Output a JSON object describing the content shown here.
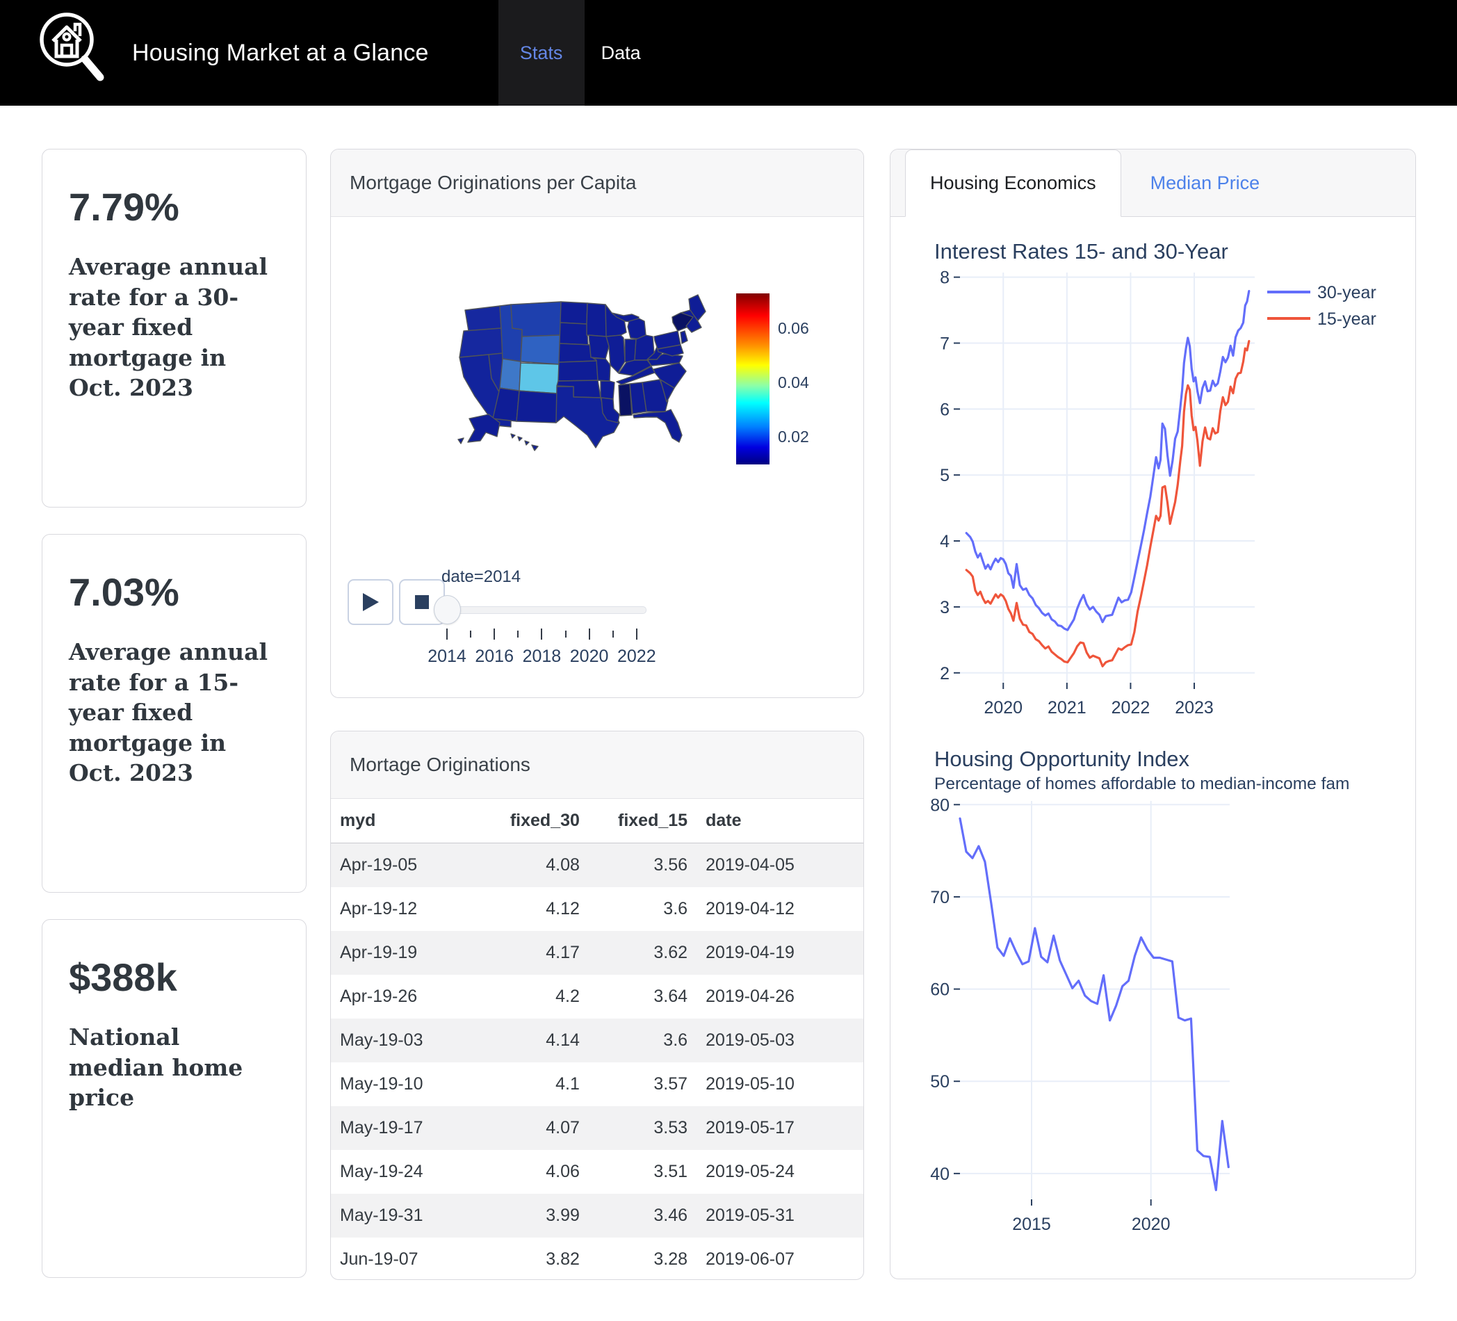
{
  "navbar": {
    "brand": "Housing Market at a Glance",
    "logo": "house-magnifier-icon",
    "tabs": [
      {
        "label": "Stats",
        "active": true
      },
      {
        "label": "Data",
        "active": false
      }
    ]
  },
  "stat_cards": [
    {
      "value": "7.79%",
      "description": "Average annual rate for a 30-year fixed mortgage in Oct. 2023"
    },
    {
      "value": "7.03%",
      "description": "Average annual rate for a 15-year fixed mortgage in Oct. 2023"
    },
    {
      "value": "$388k",
      "description": "National median home price"
    }
  ],
  "map_card": {
    "title": "Mortgage Originations per Capita",
    "player": {
      "play_icon": "play-icon",
      "stop_icon": "stop-icon"
    },
    "slider": {
      "label": "date=2014",
      "value": 2014,
      "tick_years": [
        2014,
        2015,
        2016,
        2017,
        2018,
        2019,
        2020,
        2021,
        2022
      ],
      "labeled_ticks": [
        "2014",
        "2016",
        "2018",
        "2020",
        "2022"
      ]
    }
  },
  "table_card": {
    "title": "Mortage Originations",
    "columns": [
      "myd",
      "fixed_30",
      "fixed_15",
      "date"
    ],
    "rows": [
      [
        "Apr-19-05",
        "4.08",
        "3.56",
        "2019-04-05"
      ],
      [
        "Apr-19-12",
        "4.12",
        "3.6",
        "2019-04-12"
      ],
      [
        "Apr-19-19",
        "4.17",
        "3.62",
        "2019-04-19"
      ],
      [
        "Apr-19-26",
        "4.2",
        "3.64",
        "2019-04-26"
      ],
      [
        "May-19-03",
        "4.14",
        "3.6",
        "2019-05-03"
      ],
      [
        "May-19-10",
        "4.1",
        "3.57",
        "2019-05-10"
      ],
      [
        "May-19-17",
        "4.07",
        "3.53",
        "2019-05-17"
      ],
      [
        "May-19-24",
        "4.06",
        "3.51",
        "2019-05-24"
      ],
      [
        "May-19-31",
        "3.99",
        "3.46",
        "2019-05-31"
      ],
      [
        "Jun-19-07",
        "3.82",
        "3.28",
        "2019-06-07"
      ]
    ]
  },
  "right_panel": {
    "tabs": [
      {
        "label": "Housing Economics",
        "active": true
      },
      {
        "label": "Median Price",
        "active": false
      }
    ]
  },
  "chart_data": [
    {
      "type": "choropleth",
      "title": "Mortgage Originations per Capita",
      "frame_label": "date=2014",
      "colorbar": {
        "ticks": [
          0.02,
          0.04,
          0.06
        ],
        "range": [
          0.0097,
          0.0728
        ],
        "colormap": "jet"
      },
      "base_color": "#0f1d96",
      "state_colors": {
        "CO": "#5ec6e8",
        "UT": "#3e78c8",
        "WY": "#2f62c2",
        "MT": "#1e40ae",
        "ID": "#1e40ae",
        "NY": "#0a1263",
        "MS": "#0a1263",
        "WA": "#16289f",
        "OR": "#16289f",
        "NV": "#16289f",
        "CA": "#12239c",
        "TX": "#11229b"
      }
    },
    {
      "type": "line",
      "title": "Interest Rates 15- and 30-Year",
      "x_range": [
        2019.32,
        2023.95
      ],
      "y_range": [
        1.85,
        8.07
      ],
      "x_ticks": [
        2020,
        2021,
        2022,
        2023
      ],
      "y_ticks": [
        2,
        3,
        4,
        5,
        6,
        7,
        8
      ],
      "grid": true,
      "legend_position": "right-outside",
      "x": [
        2019.42,
        2019.48,
        2019.52,
        2019.56,
        2019.6,
        2019.64,
        2019.68,
        2019.72,
        2019.76,
        2019.8,
        2019.84,
        2019.88,
        2019.92,
        2019.96,
        2020.0,
        2020.04,
        2020.08,
        2020.12,
        2020.16,
        2020.21,
        2020.26,
        2020.31,
        2020.36,
        2020.41,
        2020.46,
        2020.51,
        2020.56,
        2020.61,
        2020.66,
        2020.71,
        2020.76,
        2020.81,
        2020.86,
        2020.91,
        2020.96,
        2021.01,
        2021.06,
        2021.11,
        2021.16,
        2021.21,
        2021.26,
        2021.31,
        2021.36,
        2021.41,
        2021.46,
        2021.51,
        2021.56,
        2021.61,
        2021.66,
        2021.71,
        2021.76,
        2021.81,
        2021.86,
        2021.91,
        2021.96,
        2022.01,
        2022.06,
        2022.11,
        2022.16,
        2022.21,
        2022.26,
        2022.31,
        2022.36,
        2022.4,
        2022.44,
        2022.47,
        2022.5,
        2022.54,
        2022.58,
        2022.62,
        2022.66,
        2022.7,
        2022.74,
        2022.78,
        2022.81,
        2022.84,
        2022.87,
        2022.9,
        2022.93,
        2022.96,
        2022.99,
        2023.02,
        2023.05,
        2023.09,
        2023.13,
        2023.17,
        2023.21,
        2023.25,
        2023.29,
        2023.33,
        2023.37,
        2023.41,
        2023.45,
        2023.49,
        2023.53,
        2023.57,
        2023.61,
        2023.65,
        2023.69,
        2023.73,
        2023.77,
        2023.8,
        2023.83,
        2023.86
      ],
      "series": [
        {
          "name": "30-year",
          "color": "#636efa",
          "y": [
            4.12,
            4.06,
            3.99,
            3.84,
            3.75,
            3.81,
            3.69,
            3.58,
            3.64,
            3.57,
            3.66,
            3.73,
            3.68,
            3.74,
            3.72,
            3.65,
            3.51,
            3.47,
            3.29,
            3.65,
            3.33,
            3.26,
            3.28,
            3.18,
            3.13,
            3.03,
            2.98,
            2.91,
            2.87,
            2.9,
            2.81,
            2.78,
            2.72,
            2.71,
            2.67,
            2.65,
            2.73,
            2.81,
            2.97,
            3.09,
            3.18,
            3.04,
            2.96,
            3.0,
            2.93,
            2.88,
            2.77,
            2.86,
            2.87,
            2.88,
            3.01,
            3.14,
            3.07,
            3.1,
            3.11,
            3.22,
            3.45,
            3.69,
            3.92,
            4.16,
            4.42,
            4.67,
            5.0,
            5.27,
            5.1,
            5.23,
            5.78,
            5.7,
            5.3,
            4.99,
            5.22,
            5.55,
            5.66,
            6.02,
            6.29,
            6.7,
            6.92,
            7.08,
            6.95,
            6.61,
            6.42,
            6.48,
            6.27,
            6.09,
            6.32,
            6.42,
            6.27,
            6.28,
            6.43,
            6.35,
            6.39,
            6.57,
            6.79,
            6.71,
            6.78,
            6.96,
            6.81,
            7.09,
            7.19,
            7.23,
            7.31,
            7.57,
            7.63,
            7.79
          ]
        },
        {
          "name": "15-year",
          "color": "#ef553b",
          "y": [
            3.56,
            3.51,
            3.46,
            3.25,
            3.18,
            3.23,
            3.13,
            3.06,
            3.09,
            3.05,
            3.12,
            3.19,
            3.14,
            3.19,
            3.16,
            3.09,
            2.97,
            2.9,
            2.79,
            3.06,
            2.82,
            2.73,
            2.72,
            2.62,
            2.59,
            2.51,
            2.48,
            2.42,
            2.37,
            2.4,
            2.32,
            2.28,
            2.24,
            2.21,
            2.17,
            2.16,
            2.23,
            2.3,
            2.4,
            2.46,
            2.45,
            2.31,
            2.23,
            2.26,
            2.24,
            2.22,
            2.1,
            2.16,
            2.18,
            2.19,
            2.28,
            2.37,
            2.35,
            2.39,
            2.42,
            2.43,
            2.62,
            2.93,
            3.15,
            3.39,
            3.63,
            3.91,
            4.17,
            4.38,
            4.31,
            4.38,
            4.81,
            4.83,
            4.58,
            4.26,
            4.43,
            4.59,
            4.85,
            5.21,
            5.44,
            5.96,
            6.23,
            6.36,
            6.29,
            5.9,
            5.68,
            5.73,
            5.52,
            5.14,
            5.51,
            5.72,
            5.56,
            5.54,
            5.71,
            5.63,
            5.65,
            5.97,
            6.18,
            6.06,
            6.11,
            6.34,
            6.24,
            6.46,
            6.54,
            6.55,
            6.72,
            6.92,
            6.89,
            7.03
          ]
        }
      ]
    },
    {
      "type": "line",
      "title": "Housing Opportunity Index",
      "subtitle": "Percentage of homes affordable to median-income fam",
      "x_range": [
        2012.0,
        2023.3
      ],
      "y_range": [
        37.2,
        80.4
      ],
      "x_ticks": [
        2015,
        2020
      ],
      "y_ticks": [
        40,
        50,
        60,
        70,
        80
      ],
      "grid": true,
      "series": [
        {
          "name": "Housing Opportunity Index",
          "color": "#636efa",
          "x_span": [
            2012.0,
            2023.25
          ],
          "y": [
            78.5,
            74.9,
            74.2,
            75.5,
            73.8,
            69.3,
            64.5,
            63.6,
            65.5,
            64.0,
            62.7,
            63.0,
            66.6,
            63.5,
            62.9,
            65.8,
            63.1,
            61.6,
            60.1,
            60.9,
            59.3,
            58.7,
            58.4,
            61.5,
            56.6,
            58.2,
            60.3,
            60.9,
            63.6,
            65.6,
            64.3,
            63.4,
            63.4,
            63.2,
            63.0,
            56.9,
            56.6,
            56.8,
            42.5,
            41.9,
            41.8,
            38.2,
            45.7,
            40.7
          ]
        }
      ]
    }
  ]
}
